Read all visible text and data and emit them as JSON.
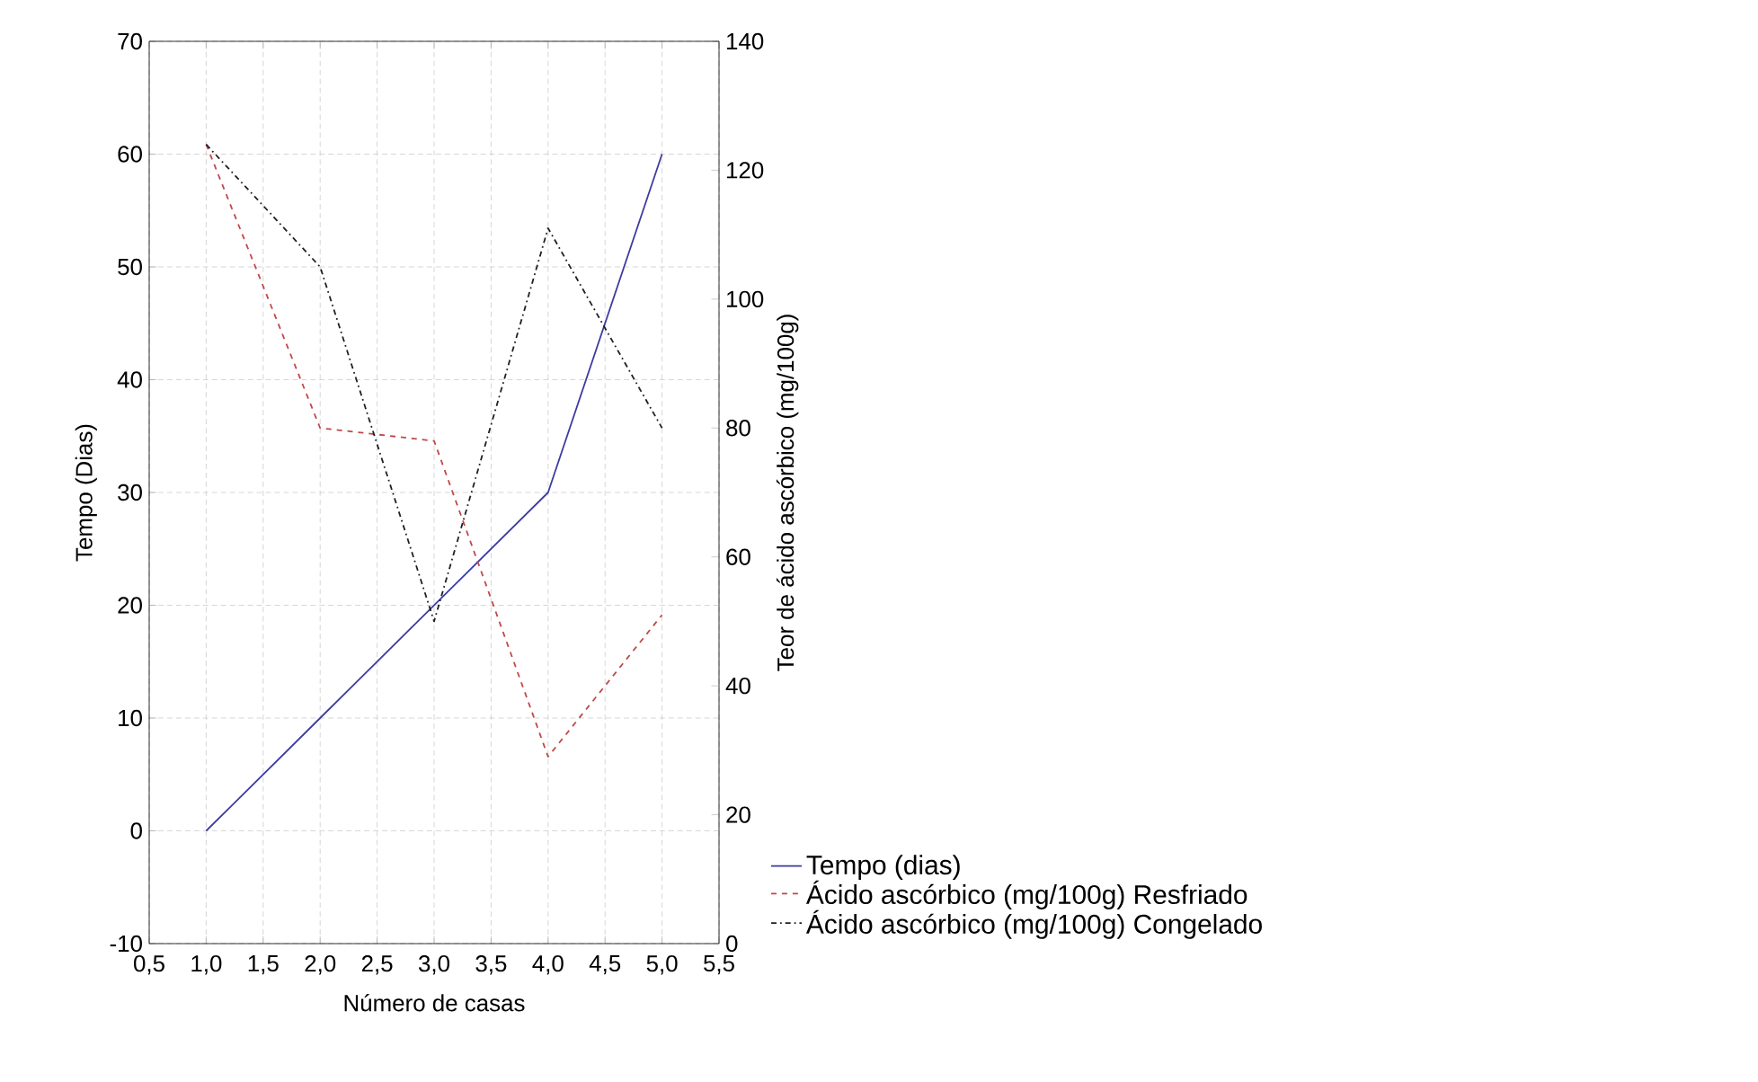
{
  "chart_data": {
    "type": "line",
    "xlabel": "Número de casas",
    "ylabel": "Tempo (Dias)",
    "y2label": "Teor de ácido ascórbico (mg/100g)",
    "x": [
      1,
      2,
      3,
      4,
      5
    ],
    "series": [
      {
        "name": "Tempo (dias)",
        "color": "#3c3ca0",
        "line_style": "solid",
        "values": [
          0,
          10,
          20,
          30,
          60
        ]
      },
      {
        "name": "Ácido ascórbico (mg/100g) Resfriado",
        "color": "#c04848",
        "line_style": "dashed",
        "axis": "y2",
        "values": [
          124,
          80,
          78,
          29,
          51
        ]
      },
      {
        "name": "Ácido ascórbico (mg/100g) Congelado",
        "color": "#202020",
        "line_style": "dashdotted",
        "axis": "y2",
        "values": [
          124,
          105,
          50,
          111,
          80
        ]
      }
    ],
    "xlim": [
      0.5,
      5.5
    ],
    "xticks": [
      {
        "value": 0.5,
        "label": "0,5"
      },
      {
        "value": 1.0,
        "label": "1,0"
      },
      {
        "value": 1.5,
        "label": "1,5"
      },
      {
        "value": 2.0,
        "label": "2,0"
      },
      {
        "value": 2.5,
        "label": "2,5"
      },
      {
        "value": 3.0,
        "label": "3,0"
      },
      {
        "value": 3.5,
        "label": "3,5"
      },
      {
        "value": 4.0,
        "label": "4,0"
      },
      {
        "value": 4.5,
        "label": "4,5"
      },
      {
        "value": 5.0,
        "label": "5,0"
      },
      {
        "value": 5.5,
        "label": "5,5"
      }
    ],
    "ylim": [
      -10,
      70
    ],
    "yticks": [
      -10,
      0,
      10,
      20,
      30,
      40,
      50,
      60,
      70
    ],
    "y2lim": [
      0,
      140
    ],
    "y2ticks": [
      0,
      20,
      40,
      60,
      80,
      100,
      120,
      140
    ],
    "grid": true,
    "legend": "bottom right",
    "marker": "none"
  }
}
